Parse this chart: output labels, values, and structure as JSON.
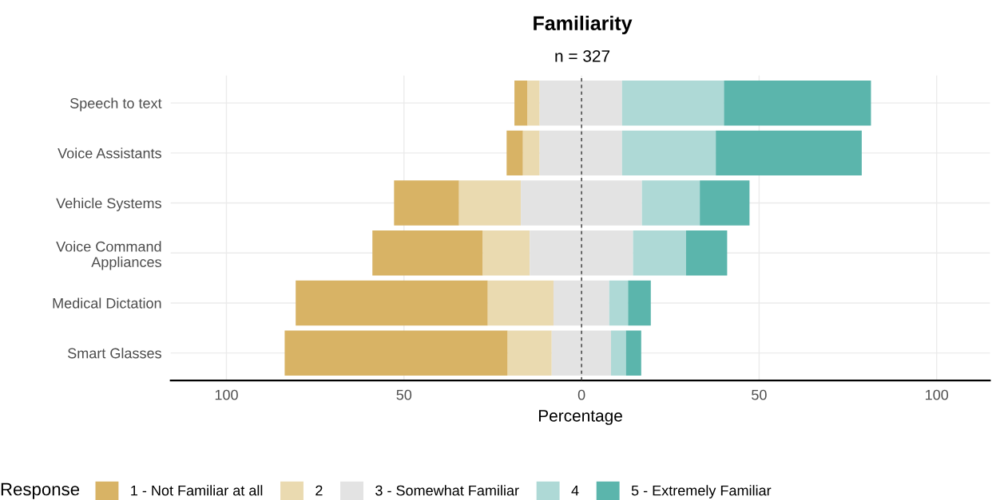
{
  "chart_data": {
    "type": "bar",
    "orientation": "horizontal",
    "title": "Familiarity",
    "subtitle": "n = 327",
    "xlabel": "Percentage",
    "legend_title": "Response",
    "categories": [
      "Speech to text",
      "Voice Assistants",
      "Vehicle Systems",
      "Voice Command\nAppliances",
      "Medical Dictation",
      "Smart Glasses"
    ],
    "series": [
      {
        "name": "1 - Not Familiar at all",
        "color": "#d8b365",
        "base": [
          -18.9,
          -21.1,
          -52.8,
          -58.9,
          -80.5,
          -83.6
        ],
        "values": [
          3.7,
          4.6,
          18.3,
          31.1,
          54.1,
          62.8
        ]
      },
      {
        "name": "2",
        "color": "#eadab0",
        "base": [
          -15.2,
          -16.5,
          -34.5,
          -27.8,
          -26.4,
          -20.8
        ],
        "values": [
          3.4,
          4.7,
          17.4,
          13.2,
          18.5,
          12.4
        ]
      },
      {
        "name": "3 - Somewhat Familiar",
        "color": "#e3e3e3",
        "base": [
          -11.8,
          -11.8,
          -17.1,
          -14.6,
          -7.9,
          -8.4
        ],
        "values": [
          23.2,
          23.2,
          34.1,
          29.1,
          15.7,
          16.7
        ]
      },
      {
        "name": "4",
        "color": "#aed9d6",
        "base": [
          11.4,
          11.4,
          17.0,
          14.5,
          7.8,
          8.3
        ],
        "values": [
          28.7,
          26.4,
          16.3,
          14.9,
          5.3,
          4.2
        ]
      },
      {
        "name": "5 - Extremely Familiar",
        "color": "#5bb5ac",
        "base": [
          40.1,
          37.8,
          33.3,
          29.4,
          13.1,
          12.5
        ],
        "values": [
          41.4,
          41.1,
          14.0,
          11.6,
          6.4,
          4.3
        ]
      }
    ],
    "xlim": [
      -115.7,
      115
    ],
    "xticks": [
      {
        "value": -100,
        "label": "100"
      },
      {
        "value": -50,
        "label": "50"
      },
      0,
      50,
      100
    ],
    "ref_lines": [
      {
        "axis": "x",
        "value": 0,
        "color": "#333333",
        "line_style": "dashed"
      }
    ],
    "grid": true,
    "legend": "bottom"
  }
}
